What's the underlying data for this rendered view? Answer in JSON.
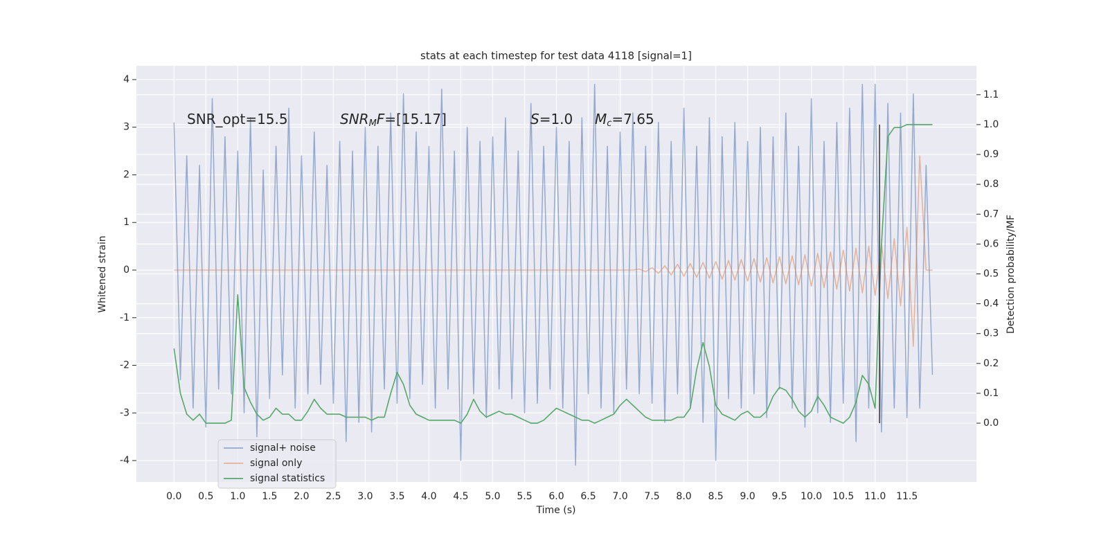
{
  "chart_data": {
    "type": "line",
    "title": "stats at each timestep for test data 4118 [signal=1]",
    "xlabel": "Time (s)",
    "ylabel": "Whitened strain",
    "y2label": "Detection probability/MF",
    "annotations": [
      [
        "SNR_opt=15.5"
      ],
      [
        "SNR",
        "M",
        "F",
        "=[15.17]"
      ],
      [
        "S",
        "=1.0"
      ],
      [
        "M",
        "c",
        "=7.65"
      ]
    ],
    "grid": true,
    "legend": "lower left",
    "xlim": [
      -0.59,
      12.59
    ],
    "ylim": [
      -4.45,
      4.29
    ],
    "y2lim": [
      -0.197,
      1.197
    ],
    "xticks": [
      {
        "value": 0,
        "label": "0.0"
      },
      0.5,
      {
        "value": 1,
        "label": "1.0"
      },
      1.5,
      {
        "value": 2,
        "label": "2.0"
      },
      2.5,
      {
        "value": 3,
        "label": "3.0"
      },
      3.5,
      {
        "value": 4,
        "label": "4.0"
      },
      4.5,
      {
        "value": 5,
        "label": "5.0"
      },
      5.5,
      {
        "value": 6,
        "label": "6.0"
      },
      6.5,
      {
        "value": 7,
        "label": "7.0"
      },
      7.5,
      {
        "value": 8,
        "label": "8.0"
      },
      8.5,
      {
        "value": 9,
        "label": "9.0"
      },
      9.5,
      {
        "value": 10,
        "label": "10.0"
      },
      10.5,
      {
        "value": 11,
        "label": "11.0"
      },
      11.5
    ],
    "yticks": [
      -4,
      -3,
      -2,
      -1,
      0,
      1,
      2,
      3,
      4
    ],
    "y2ticks": [
      {
        "value": 0,
        "label": "0.0"
      },
      0.1,
      0.2,
      0.3,
      0.4,
      0.5,
      0.6,
      0.7,
      0.8,
      0.9,
      {
        "value": 1,
        "label": "1.0"
      },
      1.1
    ],
    "x": [
      0.0,
      0.1,
      0.2,
      0.3,
      0.4,
      0.5,
      0.6,
      0.7,
      0.8,
      0.9,
      1.0,
      1.1,
      1.2,
      1.3,
      1.4,
      1.5,
      1.6,
      1.7,
      1.8,
      1.9,
      2.0,
      2.1,
      2.2,
      2.3,
      2.4,
      2.5,
      2.6,
      2.7,
      2.8,
      2.9,
      3.0,
      3.1,
      3.2,
      3.3,
      3.4,
      3.5,
      3.6,
      3.7,
      3.8,
      3.9,
      4.0,
      4.1,
      4.2,
      4.3,
      4.4,
      4.5,
      4.6,
      4.7,
      4.8,
      4.9,
      5.0,
      5.1,
      5.2,
      5.3,
      5.4,
      5.5,
      5.6,
      5.7,
      5.8,
      5.9,
      6.0,
      6.1,
      6.2,
      6.3,
      6.4,
      6.5,
      6.6,
      6.7,
      6.8,
      6.9,
      7.0,
      7.1,
      7.2,
      7.3,
      7.4,
      7.5,
      7.6,
      7.7,
      7.8,
      7.9,
      8.0,
      8.1,
      8.2,
      8.3,
      8.4,
      8.5,
      8.6,
      8.7,
      8.8,
      8.9,
      9.0,
      9.1,
      9.2,
      9.3,
      9.4,
      9.5,
      9.6,
      9.7,
      9.8,
      9.9,
      10.0,
      10.1,
      10.2,
      10.3,
      10.4,
      10.5,
      10.6,
      10.7,
      10.8,
      10.9,
      11.0,
      11.1,
      11.2,
      11.3,
      11.4,
      11.5,
      11.6,
      11.7,
      11.8,
      11.9
    ],
    "series": [
      {
        "name": "signal+ noise",
        "color": "#4c72b0",
        "values": [
          3.1,
          -2.3,
          2.4,
          -2.9,
          2.2,
          -3.3,
          3.6,
          -2.5,
          2.8,
          -2.6,
          2.5,
          -3.0,
          3.2,
          -3.5,
          2.1,
          -2.7,
          2.6,
          -2.2,
          3.4,
          -2.9,
          2.4,
          -2.6,
          2.9,
          -2.4,
          2.2,
          -2.8,
          2.7,
          -3.6,
          2.5,
          -3.2,
          3.0,
          -3.4,
          2.6,
          -2.5,
          3.3,
          -2.8,
          3.7,
          -2.7,
          2.9,
          -2.4,
          2.6,
          -2.9,
          3.8,
          -2.5,
          2.5,
          -4.0,
          3.0,
          -2.6,
          2.7,
          -3.1,
          2.8,
          -2.5,
          3.2,
          -2.7,
          2.5,
          -3.0,
          3.5,
          -2.8,
          2.6,
          -2.5,
          3.0,
          -2.9,
          2.7,
          -4.1,
          3.2,
          -2.6,
          3.9,
          -2.9,
          2.6,
          -3.0,
          2.9,
          -2.5,
          3.3,
          -2.6,
          2.6,
          -2.8,
          3.1,
          -3.2,
          2.7,
          -2.6,
          3.4,
          -2.9,
          2.6,
          -3.2,
          3.2,
          -4.0,
          2.8,
          -2.7,
          3.1,
          -2.9,
          2.7,
          -2.6,
          3.0,
          -3.1,
          2.8,
          -2.5,
          3.3,
          -2.9,
          2.6,
          -3.3,
          3.6,
          -3.0,
          2.7,
          -3.2,
          3.1,
          -2.8,
          3.4,
          -3.6,
          3.9,
          -2.9,
          3.9,
          -3.4,
          3.5,
          -2.9,
          3.3,
          -3.1,
          3.7,
          -2.9,
          2.2,
          -2.2
        ]
      },
      {
        "name": "signal only",
        "color": "#dd8452",
        "values": [
          0,
          0,
          0,
          0,
          0,
          0,
          0,
          0,
          0,
          0,
          0,
          0,
          0,
          0,
          0,
          0,
          0,
          0,
          0,
          0,
          0,
          0,
          0,
          0,
          0,
          0,
          0,
          0,
          0,
          0,
          0,
          0,
          0,
          0,
          0,
          0,
          0,
          0,
          0,
          0,
          0,
          0,
          0,
          0,
          0,
          0,
          0,
          0,
          0,
          0,
          0,
          0,
          0,
          0,
          0,
          0,
          0,
          0,
          0,
          0,
          0,
          0,
          0,
          0,
          0,
          0,
          0,
          0,
          0,
          0,
          0,
          0,
          0,
          0.02,
          -0.03,
          0.05,
          -0.07,
          0.09,
          -0.1,
          0.12,
          -0.13,
          0.14,
          -0.15,
          0.16,
          -0.17,
          0.18,
          -0.19,
          0.2,
          -0.21,
          0.22,
          -0.23,
          0.24,
          -0.25,
          0.26,
          -0.27,
          0.28,
          -0.29,
          0.3,
          -0.31,
          0.32,
          -0.34,
          0.35,
          -0.37,
          0.38,
          -0.4,
          0.42,
          -0.44,
          0.46,
          -0.48,
          0.5,
          -0.53,
          0.56,
          -0.6,
          0.66,
          -0.75,
          0.9,
          -1.6,
          2.4,
          0,
          0
        ]
      },
      {
        "name": "signal statistics",
        "color": "#55a868",
        "axis": "y2",
        "values": [
          0.25,
          0.1,
          0.03,
          0.01,
          0.03,
          0.0,
          0.0,
          0.0,
          0.0,
          0.01,
          0.43,
          0.12,
          0.07,
          0.03,
          0.01,
          0.02,
          0.05,
          0.03,
          0.03,
          0.01,
          0.01,
          0.04,
          0.08,
          0.05,
          0.03,
          0.03,
          0.03,
          0.02,
          0.02,
          0.02,
          0.02,
          0.01,
          0.02,
          0.02,
          0.1,
          0.17,
          0.13,
          0.06,
          0.03,
          0.02,
          0.01,
          0.01,
          0.01,
          0.01,
          0.01,
          0.0,
          0.03,
          0.08,
          0.04,
          0.02,
          0.03,
          0.04,
          0.03,
          0.03,
          0.02,
          0.01,
          0.0,
          0.0,
          0.01,
          0.03,
          0.05,
          0.04,
          0.03,
          0.02,
          0.01,
          0.01,
          0.0,
          0.01,
          0.02,
          0.03,
          0.06,
          0.08,
          0.06,
          0.04,
          0.02,
          0.01,
          0.01,
          0.01,
          0.01,
          0.02,
          0.02,
          0.05,
          0.18,
          0.27,
          0.19,
          0.06,
          0.03,
          0.02,
          0.01,
          0.03,
          0.04,
          0.02,
          0.02,
          0.04,
          0.09,
          0.12,
          0.11,
          0.08,
          0.04,
          0.02,
          0.04,
          0.09,
          0.06,
          0.02,
          0.01,
          0.0,
          0.02,
          0.07,
          0.16,
          0.13,
          0.05,
          0.6,
          0.96,
          0.99,
          0.99,
          1.0,
          1.0,
          1.0,
          1.0,
          1.0
        ]
      }
    ],
    "vline": {
      "x": 11.07,
      "y2": [
        0,
        1.0
      ],
      "color": "#333333"
    }
  }
}
